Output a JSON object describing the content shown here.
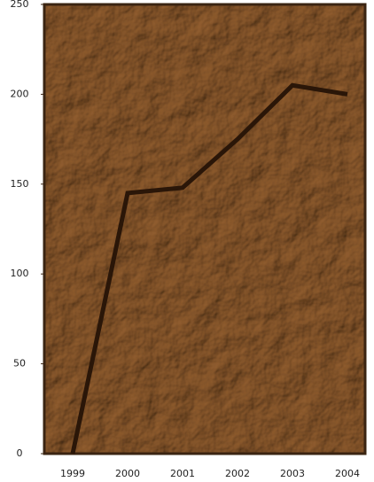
{
  "chart_data": {
    "type": "line",
    "categories": [
      "1999",
      "2000",
      "2001",
      "2002",
      "2003",
      "2004"
    ],
    "values": [
      0,
      145,
      148,
      175,
      205,
      200
    ],
    "color": "#2a1608",
    "ylim": [
      0,
      250
    ],
    "yticks": [
      0,
      50,
      100,
      150,
      200,
      250
    ]
  }
}
